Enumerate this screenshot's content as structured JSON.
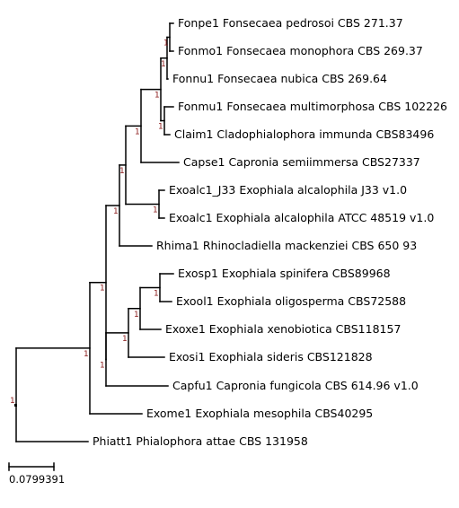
{
  "tree": {
    "leaves": [
      {
        "id": "fonpe1",
        "label": "Fonpe1 Fonsecaea pedrosoi CBS 271.37"
      },
      {
        "id": "fonmo1",
        "label": "Fonmo1 Fonsecaea monophora CBS 269.37"
      },
      {
        "id": "fonnu1",
        "label": "Fonnu1 Fonsecaea nubica CBS 269.64"
      },
      {
        "id": "fonmu1",
        "label": "Fonmu1 Fonsecaea multimorphosa CBS 102226"
      },
      {
        "id": "claim1",
        "label": "Claim1 Cladophialophora immunda CBS83496"
      },
      {
        "id": "capse1",
        "label": "Capse1 Capronia semiimmersa CBS27337"
      },
      {
        "id": "exoalc1-j33",
        "label": "Exoalc1_J33 Exophiala alcalophila J33 v1.0"
      },
      {
        "id": "exoalc1",
        "label": "Exoalc1 Exophiala alcalophila ATCC 48519 v1.0"
      },
      {
        "id": "rhima1",
        "label": "Rhima1 Rhinocladiella mackenziei CBS 650 93"
      },
      {
        "id": "exosp1",
        "label": "Exosp1 Exophiala spinifera CBS89968"
      },
      {
        "id": "exool1",
        "label": "Exool1 Exophiala oligosperma CBS72588"
      },
      {
        "id": "exoxe1",
        "label": "Exoxe1 Exophiala xenobiotica CBS118157"
      },
      {
        "id": "exosi1",
        "label": "Exosi1 Exophiala sideris CBS121828"
      },
      {
        "id": "capfu1",
        "label": "Capfu1 Capronia fungicola CBS 614.96 v1.0"
      },
      {
        "id": "exome1",
        "label": "Exome1 Exophiala mesophila CBS40295"
      },
      {
        "id": "phiatt1",
        "label": "Phiatt1 Phialophora attae CBS 131958"
      }
    ],
    "support_value": "1",
    "support_color": "#8b1a1a",
    "branch_color": "#000000"
  },
  "scale_bar": {
    "label": "0.0799391"
  }
}
